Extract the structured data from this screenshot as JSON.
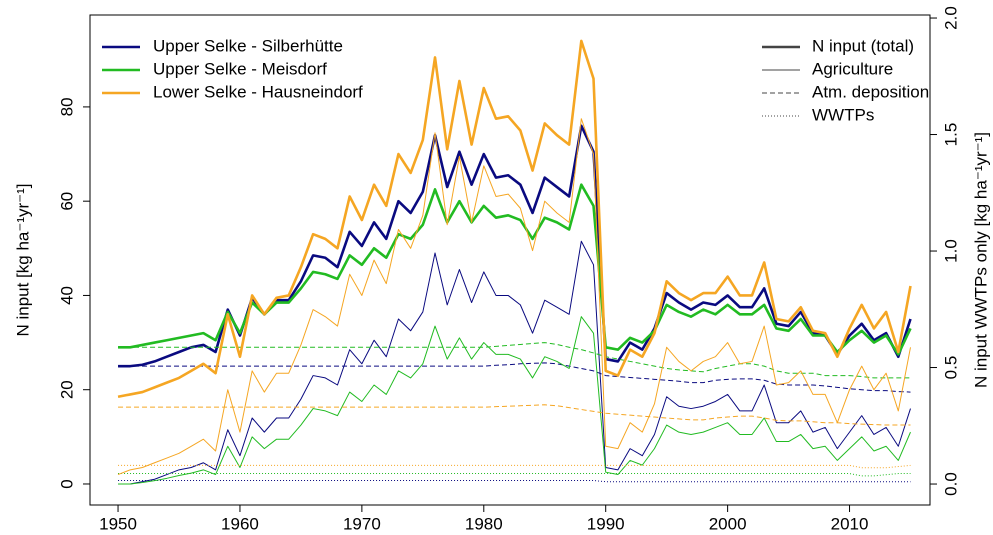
{
  "chart_data": {
    "type": "line",
    "ylabel": "N input [kg ha⁻¹yr⁻¹]",
    "y2label": "N input WWTPs only [kg ha⁻¹yr⁻¹]",
    "x": [
      1950,
      1951,
      1952,
      1953,
      1954,
      1955,
      1956,
      1957,
      1958,
      1959,
      1960,
      1961,
      1962,
      1963,
      1964,
      1965,
      1966,
      1967,
      1968,
      1969,
      1970,
      1971,
      1972,
      1973,
      1974,
      1975,
      1976,
      1977,
      1978,
      1979,
      1980,
      1981,
      1982,
      1983,
      1984,
      1985,
      1986,
      1987,
      1988,
      1989,
      1990,
      1991,
      1992,
      1993,
      1994,
      1995,
      1996,
      1997,
      1998,
      1999,
      2000,
      2001,
      2002,
      2003,
      2004,
      2005,
      2006,
      2007,
      2008,
      2009,
      2010,
      2011,
      2012,
      2013,
      2014,
      2015
    ],
    "xlim": [
      1947.7,
      2016.6
    ],
    "xticks": [
      1950,
      1960,
      1970,
      1980,
      1990,
      2000,
      2010
    ],
    "ylim": [
      -4.46,
      99.5
    ],
    "yticks": [
      0,
      20,
      40,
      60,
      80
    ],
    "y2lim": [
      -0.09,
      2.013
    ],
    "y2ticks": [
      {
        "value": 0,
        "label": "0.0"
      },
      {
        "value": 0.5,
        "label": "0.5"
      },
      {
        "value": 1,
        "label": "1.0"
      },
      {
        "value": 1.5,
        "label": "1.5"
      },
      {
        "value": 2,
        "label": "2.0"
      }
    ],
    "components": [
      {
        "name": "N input (total)",
        "width": 2.6,
        "dash": "none",
        "axis": "y"
      },
      {
        "name": "Agriculture",
        "width": 1,
        "dash": "none",
        "axis": "y"
      },
      {
        "name": "Atm. deposition",
        "width": 1,
        "dash": "5 3",
        "axis": "y"
      },
      {
        "name": "WWTPs",
        "width": 1,
        "dash": "1 2",
        "axis": "y2"
      }
    ],
    "series": [
      {
        "name": "Upper Selke - Silberhütte",
        "color": "#0a0a80",
        "values": [
          [
            25,
            25,
            25.3,
            26,
            27,
            28,
            29,
            29.5,
            28,
            37,
            31.5,
            39.5,
            36,
            39,
            39,
            43,
            48.5,
            48,
            46,
            53.5,
            50.5,
            55.5,
            52,
            60,
            57.5,
            62,
            74,
            63,
            70.5,
            63.5,
            70,
            65,
            65.5,
            63.5,
            57.5,
            65,
            63,
            61,
            76,
            70.5,
            26.5,
            26,
            30,
            28.5,
            33,
            40.5,
            38.5,
            37,
            38.5,
            38,
            40,
            37.5,
            37.5,
            41.5,
            34,
            33.5,
            36.5,
            32,
            31.5,
            27.5,
            31.5,
            34,
            30.5,
            32,
            27,
            35
          ],
          [
            0,
            0,
            0.5,
            1,
            2,
            3,
            3.5,
            4.5,
            3,
            11.5,
            6,
            14,
            11,
            14,
            14,
            18,
            23,
            22.5,
            21,
            28.5,
            25.5,
            30.5,
            27,
            35,
            32.5,
            36.5,
            49,
            38,
            45.5,
            38.5,
            45,
            40,
            40,
            38,
            32,
            39,
            37.5,
            36,
            51.5,
            46.5,
            3.5,
            3,
            7.5,
            6,
            10.5,
            18.5,
            16.5,
            16,
            16.5,
            17.5,
            19,
            15.5,
            15.5,
            21,
            13,
            13,
            15.5,
            11,
            12,
            7.5,
            11,
            14.5,
            10.5,
            12,
            8,
            16
          ],
          [
            25,
            25,
            25,
            25,
            25,
            25,
            25,
            25,
            25,
            25,
            25,
            25,
            25,
            25,
            25,
            25,
            25,
            25,
            25,
            25,
            25,
            25,
            25,
            25,
            25,
            25,
            25,
            25,
            25,
            25,
            25,
            25.2,
            25.3,
            25.5,
            25.6,
            25.7,
            25.5,
            25,
            24.5,
            24,
            23,
            22.8,
            22.6,
            22.4,
            22.2,
            22,
            21.8,
            21.5,
            21.5,
            22,
            22.2,
            22.3,
            22.3,
            22,
            21.2,
            21,
            21,
            21,
            20.8,
            20.5,
            20.2,
            20,
            19.8,
            19.8,
            19.6,
            19.5
          ],
          [
            0.015,
            0.015,
            0.015,
            0.015,
            0.015,
            0.015,
            0.015,
            0.015,
            0.015,
            0.015,
            0.015,
            0.015,
            0.015,
            0.015,
            0.015,
            0.015,
            0.015,
            0.015,
            0.015,
            0.015,
            0.015,
            0.015,
            0.015,
            0.015,
            0.015,
            0.015,
            0.015,
            0.015,
            0.015,
            0.015,
            0.015,
            0.015,
            0.015,
            0.015,
            0.015,
            0.015,
            0.015,
            0.015,
            0.015,
            0.015,
            0.01,
            0.01,
            0.01,
            0.01,
            0.01,
            0.01,
            0.01,
            0.01,
            0.01,
            0.01,
            0.01,
            0.01,
            0.01,
            0.01,
            0.01,
            0.01,
            0.01,
            0.01,
            0.01,
            0.01,
            0.01,
            0.01,
            0.01,
            0.01,
            0.01,
            0.01
          ]
        ]
      },
      {
        "name": "Upper Selke - Meisdorf",
        "color": "#22bb22",
        "values": [
          [
            29,
            29,
            29.5,
            30,
            30.5,
            31,
            31.5,
            32,
            30.5,
            36.5,
            32,
            38.5,
            36,
            38.5,
            38.5,
            41.5,
            45,
            44.5,
            43.5,
            48.5,
            46.5,
            50,
            48,
            53,
            52,
            55,
            62.5,
            55.5,
            60,
            55.5,
            59,
            56.5,
            57,
            56,
            52,
            56.5,
            55.5,
            54,
            63.5,
            59,
            29,
            28.5,
            31,
            30,
            32.5,
            38,
            36.5,
            35.5,
            37,
            36,
            38,
            36,
            36,
            38,
            33,
            32.5,
            35,
            31.5,
            31.5,
            28,
            30.5,
            32.5,
            30,
            31.5,
            27.5,
            33
          ],
          [
            0,
            0,
            0.3,
            0.7,
            1.2,
            1.8,
            2.3,
            3,
            2,
            8,
            3.5,
            10,
            7.5,
            9.5,
            9.5,
            12.5,
            16,
            15.5,
            14.5,
            19.5,
            17.5,
            21,
            19,
            24,
            22.5,
            25.5,
            33.5,
            26.5,
            31,
            26.5,
            30,
            27.5,
            27.5,
            26.5,
            22.5,
            27,
            26,
            24.5,
            35.5,
            32,
            2.5,
            2,
            5,
            4,
            7.5,
            12.5,
            11,
            10.5,
            11,
            12,
            13,
            10.5,
            10.5,
            14,
            9,
            9,
            10.5,
            7.5,
            8,
            5,
            7.5,
            10,
            7,
            8,
            5,
            11
          ],
          [
            29,
            29,
            29,
            29,
            29,
            29,
            29,
            29,
            29,
            29,
            29,
            29,
            29,
            29,
            29,
            29,
            29,
            29,
            29,
            29,
            29,
            29,
            29,
            29,
            29,
            29,
            29,
            29,
            29,
            29,
            29,
            29.2,
            29.4,
            29.6,
            29.8,
            30,
            29.6,
            29,
            28.5,
            27.8,
            27,
            26.5,
            26,
            25.5,
            25,
            24.5,
            24.2,
            24,
            23.8,
            24.5,
            25,
            25.5,
            25.5,
            25,
            24,
            23.5,
            23.5,
            23.5,
            23,
            23,
            23,
            22.8,
            22.5,
            22.5,
            22.5,
            22.5
          ],
          [
            0.045,
            0.045,
            0.045,
            0.045,
            0.045,
            0.045,
            0.045,
            0.045,
            0.045,
            0.045,
            0.045,
            0.045,
            0.045,
            0.045,
            0.045,
            0.045,
            0.045,
            0.045,
            0.045,
            0.045,
            0.045,
            0.045,
            0.045,
            0.045,
            0.045,
            0.045,
            0.045,
            0.045,
            0.045,
            0.045,
            0.045,
            0.045,
            0.045,
            0.045,
            0.045,
            0.045,
            0.045,
            0.045,
            0.045,
            0.045,
            0.045,
            0.045,
            0.045,
            0.045,
            0.045,
            0.045,
            0.045,
            0.045,
            0.045,
            0.045,
            0.045,
            0.045,
            0.045,
            0.045,
            0.045,
            0.045,
            0.045,
            0.045,
            0.045,
            0.045,
            0.045,
            0.035,
            0.035,
            0.04,
            0.045,
            0.045
          ]
        ]
      },
      {
        "name": "Lower Selke - Hausneindorf",
        "color": "#f5a623",
        "values": [
          [
            18.5,
            19,
            19.5,
            20.5,
            21.5,
            22.5,
            24,
            25.5,
            23.5,
            36,
            27,
            40,
            36,
            39.5,
            40,
            46,
            53,
            52,
            50,
            61,
            56,
            63.5,
            59,
            70,
            66,
            73,
            90.5,
            71,
            85.5,
            72,
            84,
            77.5,
            78,
            75,
            66.5,
            76.5,
            74,
            72,
            94,
            86,
            24,
            23,
            28.5,
            27,
            32,
            43,
            40.5,
            39,
            40.5,
            40.5,
            44,
            40,
            40,
            47,
            35,
            34.5,
            37.5,
            32.5,
            32,
            27,
            33,
            38,
            33,
            36.5,
            28,
            42
          ],
          [
            2,
            3,
            3.5,
            4.5,
            5.5,
            6.5,
            8,
            9.5,
            7,
            20,
            11,
            24,
            19.5,
            23.5,
            23.5,
            29.5,
            37,
            35.5,
            33.5,
            44.5,
            40,
            47.5,
            42.5,
            54,
            50,
            57,
            74.5,
            55,
            69.5,
            55.5,
            67.5,
            61,
            61.5,
            58.5,
            49.5,
            60,
            57.5,
            55.5,
            77.5,
            70,
            8,
            7.5,
            13,
            11,
            17,
            29,
            26,
            24,
            26,
            27,
            30,
            25.5,
            26,
            33.5,
            21,
            21.5,
            24,
            19,
            19,
            13,
            20,
            25,
            20,
            23.5,
            15.5,
            29
          ],
          [
            16.3,
            16.3,
            16.3,
            16.3,
            16.3,
            16.3,
            16.3,
            16.3,
            16.3,
            16.3,
            16.3,
            16.3,
            16.3,
            16.3,
            16.3,
            16.3,
            16.3,
            16.3,
            16.3,
            16.3,
            16.3,
            16.3,
            16.3,
            16.3,
            16.3,
            16.3,
            16.3,
            16.3,
            16.3,
            16.3,
            16.3,
            16.4,
            16.5,
            16.6,
            16.7,
            16.8,
            16.6,
            16.2,
            15.8,
            15.4,
            15,
            14.8,
            14.6,
            14.4,
            14.2,
            14,
            13.8,
            13.6,
            13.6,
            14,
            14.2,
            14.4,
            14.4,
            14,
            13.5,
            13.4,
            13.4,
            13.2,
            13,
            13,
            12.8,
            12.7,
            12.6,
            12.5,
            12.5,
            12.5
          ],
          [
            0.08,
            0.08,
            0.08,
            0.08,
            0.08,
            0.08,
            0.08,
            0.08,
            0.08,
            0.08,
            0.08,
            0.08,
            0.08,
            0.08,
            0.08,
            0.08,
            0.08,
            0.08,
            0.08,
            0.08,
            0.08,
            0.08,
            0.08,
            0.08,
            0.08,
            0.08,
            0.08,
            0.08,
            0.08,
            0.08,
            0.08,
            0.08,
            0.08,
            0.08,
            0.08,
            0.08,
            0.08,
            0.08,
            0.08,
            0.08,
            0.08,
            0.08,
            0.08,
            0.08,
            0.08,
            0.08,
            0.08,
            0.08,
            0.08,
            0.08,
            0.08,
            0.08,
            0.08,
            0.08,
            0.08,
            0.08,
            0.08,
            0.08,
            0.08,
            0.08,
            0.08,
            0.07,
            0.07,
            0.07,
            0.075,
            0.08
          ]
        ]
      }
    ]
  }
}
